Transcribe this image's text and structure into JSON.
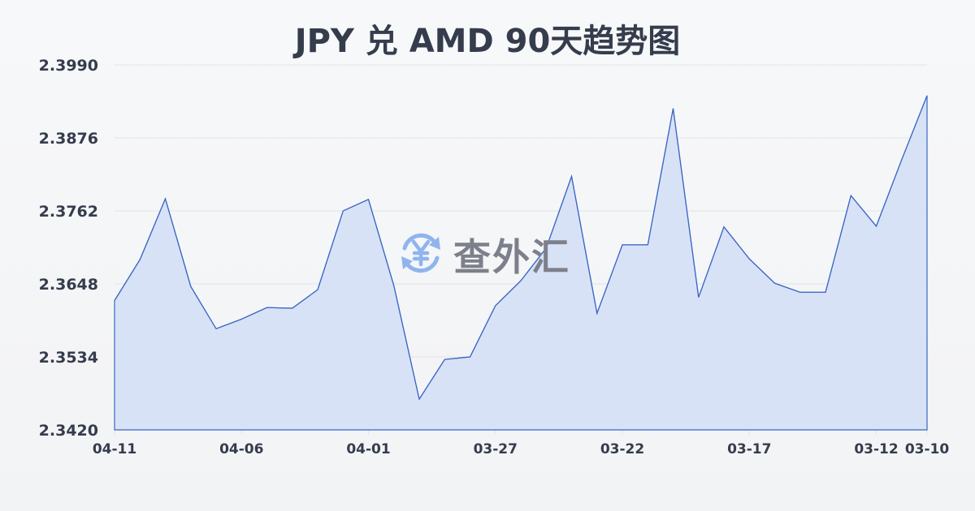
{
  "title": "JPY 兑 AMD 90天趋势图",
  "watermark": {
    "icon": "yen-exchange-icon",
    "text": "查外汇"
  },
  "colors": {
    "line": "#3a66c4",
    "fill": "#d6e0f5",
    "grid": "#e1e4ea",
    "text": "#353c4c",
    "watermark_icon": "#8fb4ef",
    "watermark_text": "#7d808a"
  },
  "chart_data": {
    "type": "area",
    "title": "JPY 兑 AMD 90天趋势图",
    "xlabel": "",
    "ylabel": "",
    "ylim": [
      2.342,
      2.399
    ],
    "yticks": [
      "2.3990",
      "2.3876",
      "2.3762",
      "2.3648",
      "2.3534",
      "2.3420"
    ],
    "xticks": [
      {
        "label": "04-11",
        "index": 0
      },
      {
        "label": "04-06",
        "index": 5
      },
      {
        "label": "04-01",
        "index": 10
      },
      {
        "label": "03-27",
        "index": 15
      },
      {
        "label": "03-22",
        "index": 20
      },
      {
        "label": "03-17",
        "index": 25
      },
      {
        "label": "03-12",
        "index": 30
      },
      {
        "label": "03-10",
        "index": 32
      }
    ],
    "grid": true,
    "legend": "none",
    "x": [
      "04-11",
      "04-10",
      "04-09",
      "04-08",
      "04-07",
      "04-06",
      "04-05",
      "04-04",
      "04-03",
      "04-02",
      "04-01",
      "03-31",
      "03-30",
      "03-29",
      "03-28",
      "03-27",
      "03-26",
      "03-25",
      "03-24",
      "03-23",
      "03-22",
      "03-21",
      "03-20",
      "03-19",
      "03-18",
      "03-17",
      "03-16",
      "03-15",
      "03-14",
      "03-13",
      "03-12",
      "03-11",
      "03-10"
    ],
    "series": [
      {
        "name": "JPY/AMD",
        "values": [
          2.3622,
          2.3686,
          2.3781,
          2.3644,
          2.3578,
          2.3593,
          2.3611,
          2.361,
          2.3639,
          2.3762,
          2.378,
          2.3645,
          2.3468,
          2.353,
          2.3534,
          2.3614,
          2.3653,
          2.3704,
          2.3816,
          2.3602,
          2.3709,
          2.3709,
          2.3922,
          2.3627,
          2.3737,
          2.3687,
          2.3649,
          2.3635,
          2.3635,
          2.3786,
          2.3738,
          2.3842,
          2.3942
        ]
      }
    ]
  }
}
